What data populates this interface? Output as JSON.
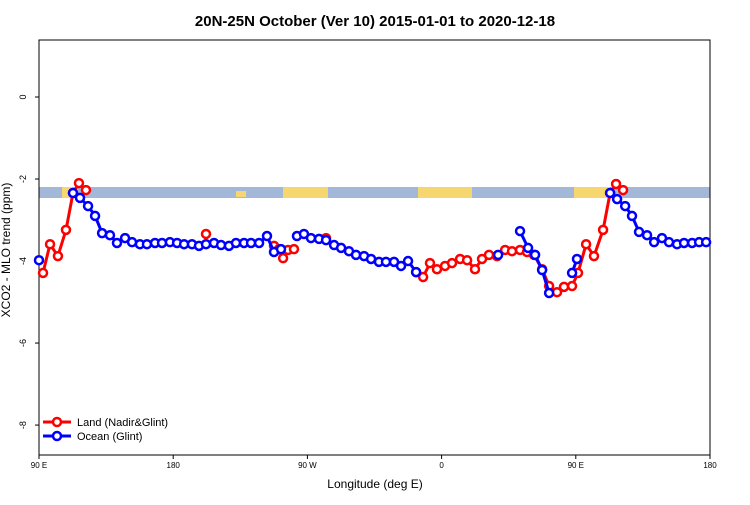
{
  "chart_data": {
    "type": "line",
    "title": "20N-25N October (Ver 10)   2015-01-01 to 2020-12-18",
    "x_label": "Longitude (deg E)",
    "y_label": "XCO2 - MLO trend (ppm)",
    "xlim": [
      90,
      540
    ],
    "ylim": [
      -8.73,
      1.39
    ],
    "xticks": [
      {
        "value": 90,
        "label": "90 E"
      },
      180,
      {
        "value": 270,
        "label": "90 W"
      },
      {
        "value": 360,
        "label": "0"
      },
      {
        "value": 450,
        "label": "90 E"
      },
      {
        "value": 540,
        "label": "180"
      }
    ],
    "yticks": [
      0,
      -2,
      -4,
      -6,
      -8
    ],
    "legend": "bottom-left",
    "series": [
      {
        "name": "Land (Nadir&Glint)",
        "color": "#ff0000",
        "x": [
          92.7,
          97.4,
          102.7,
          108.1,
          112.8,
          116.8,
          121.5,
          null,
          202,
          null,
          247.6,
          251,
          253.7,
          257,
          261,
          null,
          282.5,
          null,
          342.9,
          347.6,
          352.2,
          356.9,
          362.3,
          367,
          372.4,
          377.1,
          382.4,
          387.1,
          391.8,
          397.2,
          402.6,
          407.2,
          412.6,
          417.3,
          422,
          427.4,
          432.1,
          437.4,
          442.1,
          447.5,
          451.5,
          456.9,
          462.2,
          468.3,
          473,
          477,
          481.7
        ],
        "values": [
          -4.29,
          -3.59,
          -3.88,
          -3.24,
          -2.34,
          -2.1,
          -2.27,
          null,
          -3.34,
          null,
          -3.63,
          -3.71,
          -3.93,
          -3.73,
          -3.71,
          null,
          -3.44,
          null,
          -4.27,
          -4.39,
          -4.05,
          -4.2,
          -4.12,
          -4.05,
          -3.95,
          -3.98,
          -4.2,
          -3.95,
          -3.85,
          -3.88,
          -3.73,
          -3.76,
          -3.73,
          -3.78,
          -3.85,
          -4.2,
          -4.61,
          -4.76,
          -4.63,
          -4.61,
          -4.29,
          -3.59,
          -3.88,
          -3.24,
          -2.34,
          -2.12,
          -2.27
        ]
      },
      {
        "name": "Ocean (Glint)",
        "color": "#0000ff",
        "x": [
          90,
          null,
          112.8,
          117.5,
          122.9,
          127.6,
          132.3,
          137.6,
          142.3,
          147.7,
          152.4,
          157.7,
          162.4,
          167.8,
          172.5,
          177.8,
          182.6,
          187.3,
          192.6,
          197.3,
          202,
          207.4,
          212.1,
          217.4,
          222.1,
          227.5,
          232.2,
          237.6,
          242.9,
          247.6,
          252.3,
          null,
          263,
          267.7,
          272.4,
          277.8,
          282.5,
          287.9,
          292.6,
          297.9,
          302.6,
          308,
          312.7,
          318,
          322.7,
          328.1,
          332.8,
          337.5,
          342.9,
          null,
          397.9,
          null,
          412.6,
          418,
          422.7,
          427.4,
          432.1,
          null,
          447.5,
          450.8,
          null,
          473,
          477.7,
          483.1,
          487.7,
          492.4,
          497.8,
          502.5,
          507.8,
          512.5,
          517.9,
          522.6,
          528,
          532.7,
          537.4
        ],
        "values": [
          -3.98,
          null,
          -2.34,
          -2.46,
          -2.66,
          -2.9,
          -3.32,
          -3.37,
          -3.56,
          -3.44,
          -3.54,
          -3.59,
          -3.59,
          -3.56,
          -3.56,
          -3.54,
          -3.56,
          -3.59,
          -3.59,
          -3.63,
          -3.59,
          -3.56,
          -3.61,
          -3.63,
          -3.56,
          -3.56,
          -3.56,
          -3.56,
          -3.39,
          -3.78,
          -3.71,
          null,
          -3.39,
          -3.34,
          -3.44,
          -3.46,
          -3.49,
          -3.61,
          -3.68,
          -3.76,
          -3.85,
          -3.88,
          -3.95,
          -4.02,
          -4.02,
          -4.02,
          -4.12,
          -4.0,
          -4.27,
          null,
          -3.85,
          null,
          -3.27,
          -3.68,
          -3.85,
          -4.22,
          -4.78,
          null,
          -4.29,
          -3.95,
          null,
          -2.34,
          -2.49,
          -2.66,
          -2.9,
          -3.29,
          -3.37,
          -3.54,
          -3.44,
          -3.54,
          -3.59,
          -3.56,
          -3.56,
          -3.54,
          -3.54
        ]
      }
    ]
  }
}
